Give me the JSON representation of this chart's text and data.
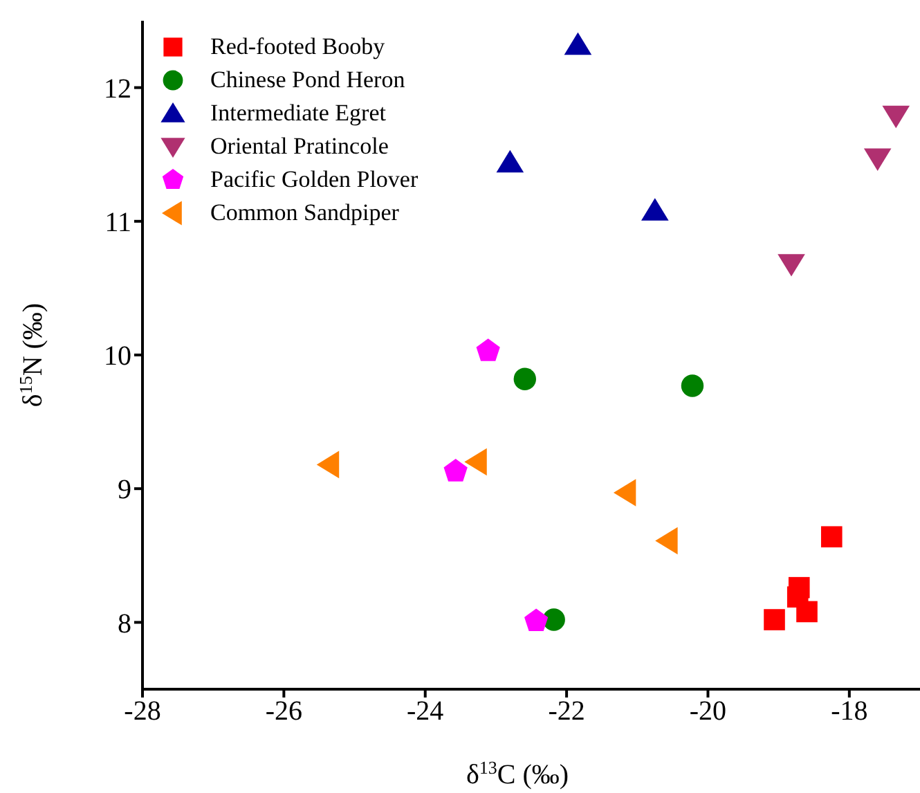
{
  "chart_data": {
    "type": "scatter",
    "xlabel": "δ$^{13}$C (‰)",
    "ylabel": "δ$^{15}$N (‰)",
    "xlim": [
      -28,
      -17
    ],
    "xticks": [
      -28,
      -26,
      -24,
      -22,
      -20,
      -18
    ],
    "ylim": [
      7.5,
      12.5
    ],
    "yticks": [
      8,
      9,
      10,
      11,
      12
    ],
    "grid": false,
    "legend": "top left",
    "series": [
      {
        "name": "Red-footed Booby",
        "color": "#ff0000",
        "marker": "square",
        "x": [
          -18.25,
          -18.71,
          -18.73,
          -18.6,
          -19.06
        ],
        "values": [
          8.64,
          8.26,
          8.19,
          8.08,
          8.02
        ]
      },
      {
        "name": "Chinese Pond Heron",
        "color": "#008000",
        "marker": "circle",
        "x": [
          -22.59,
          -20.22,
          -22.18
        ],
        "values": [
          9.82,
          9.77,
          8.02
        ]
      },
      {
        "name": "Intermediate Egret",
        "color": "#0000a0",
        "marker": "triangle",
        "x": [
          -21.84,
          -22.8,
          -20.75
        ],
        "values": [
          12.32,
          11.44,
          11.08
        ]
      },
      {
        "name": "Oriental Pratincole",
        "color": "#b03070",
        "marker": "triangle-down",
        "x": [
          -17.34,
          -17.6,
          -18.82
        ],
        "values": [
          11.79,
          11.47,
          10.68
        ]
      },
      {
        "name": "Pacific Golden Plover",
        "color": "#ff00ff",
        "x": [
          -23.11,
          -23.57,
          -22.43
        ],
        "values": [
          10.03,
          9.13,
          8.01
        ]
      },
      {
        "name": "Common Sandpiper",
        "color": "#ff8000",
        "marker": "triangle-left",
        "x": [
          -25.36,
          -23.27,
          -21.16,
          -20.57
        ],
        "values": [
          9.18,
          9.2,
          8.97,
          8.61
        ]
      }
    ]
  }
}
